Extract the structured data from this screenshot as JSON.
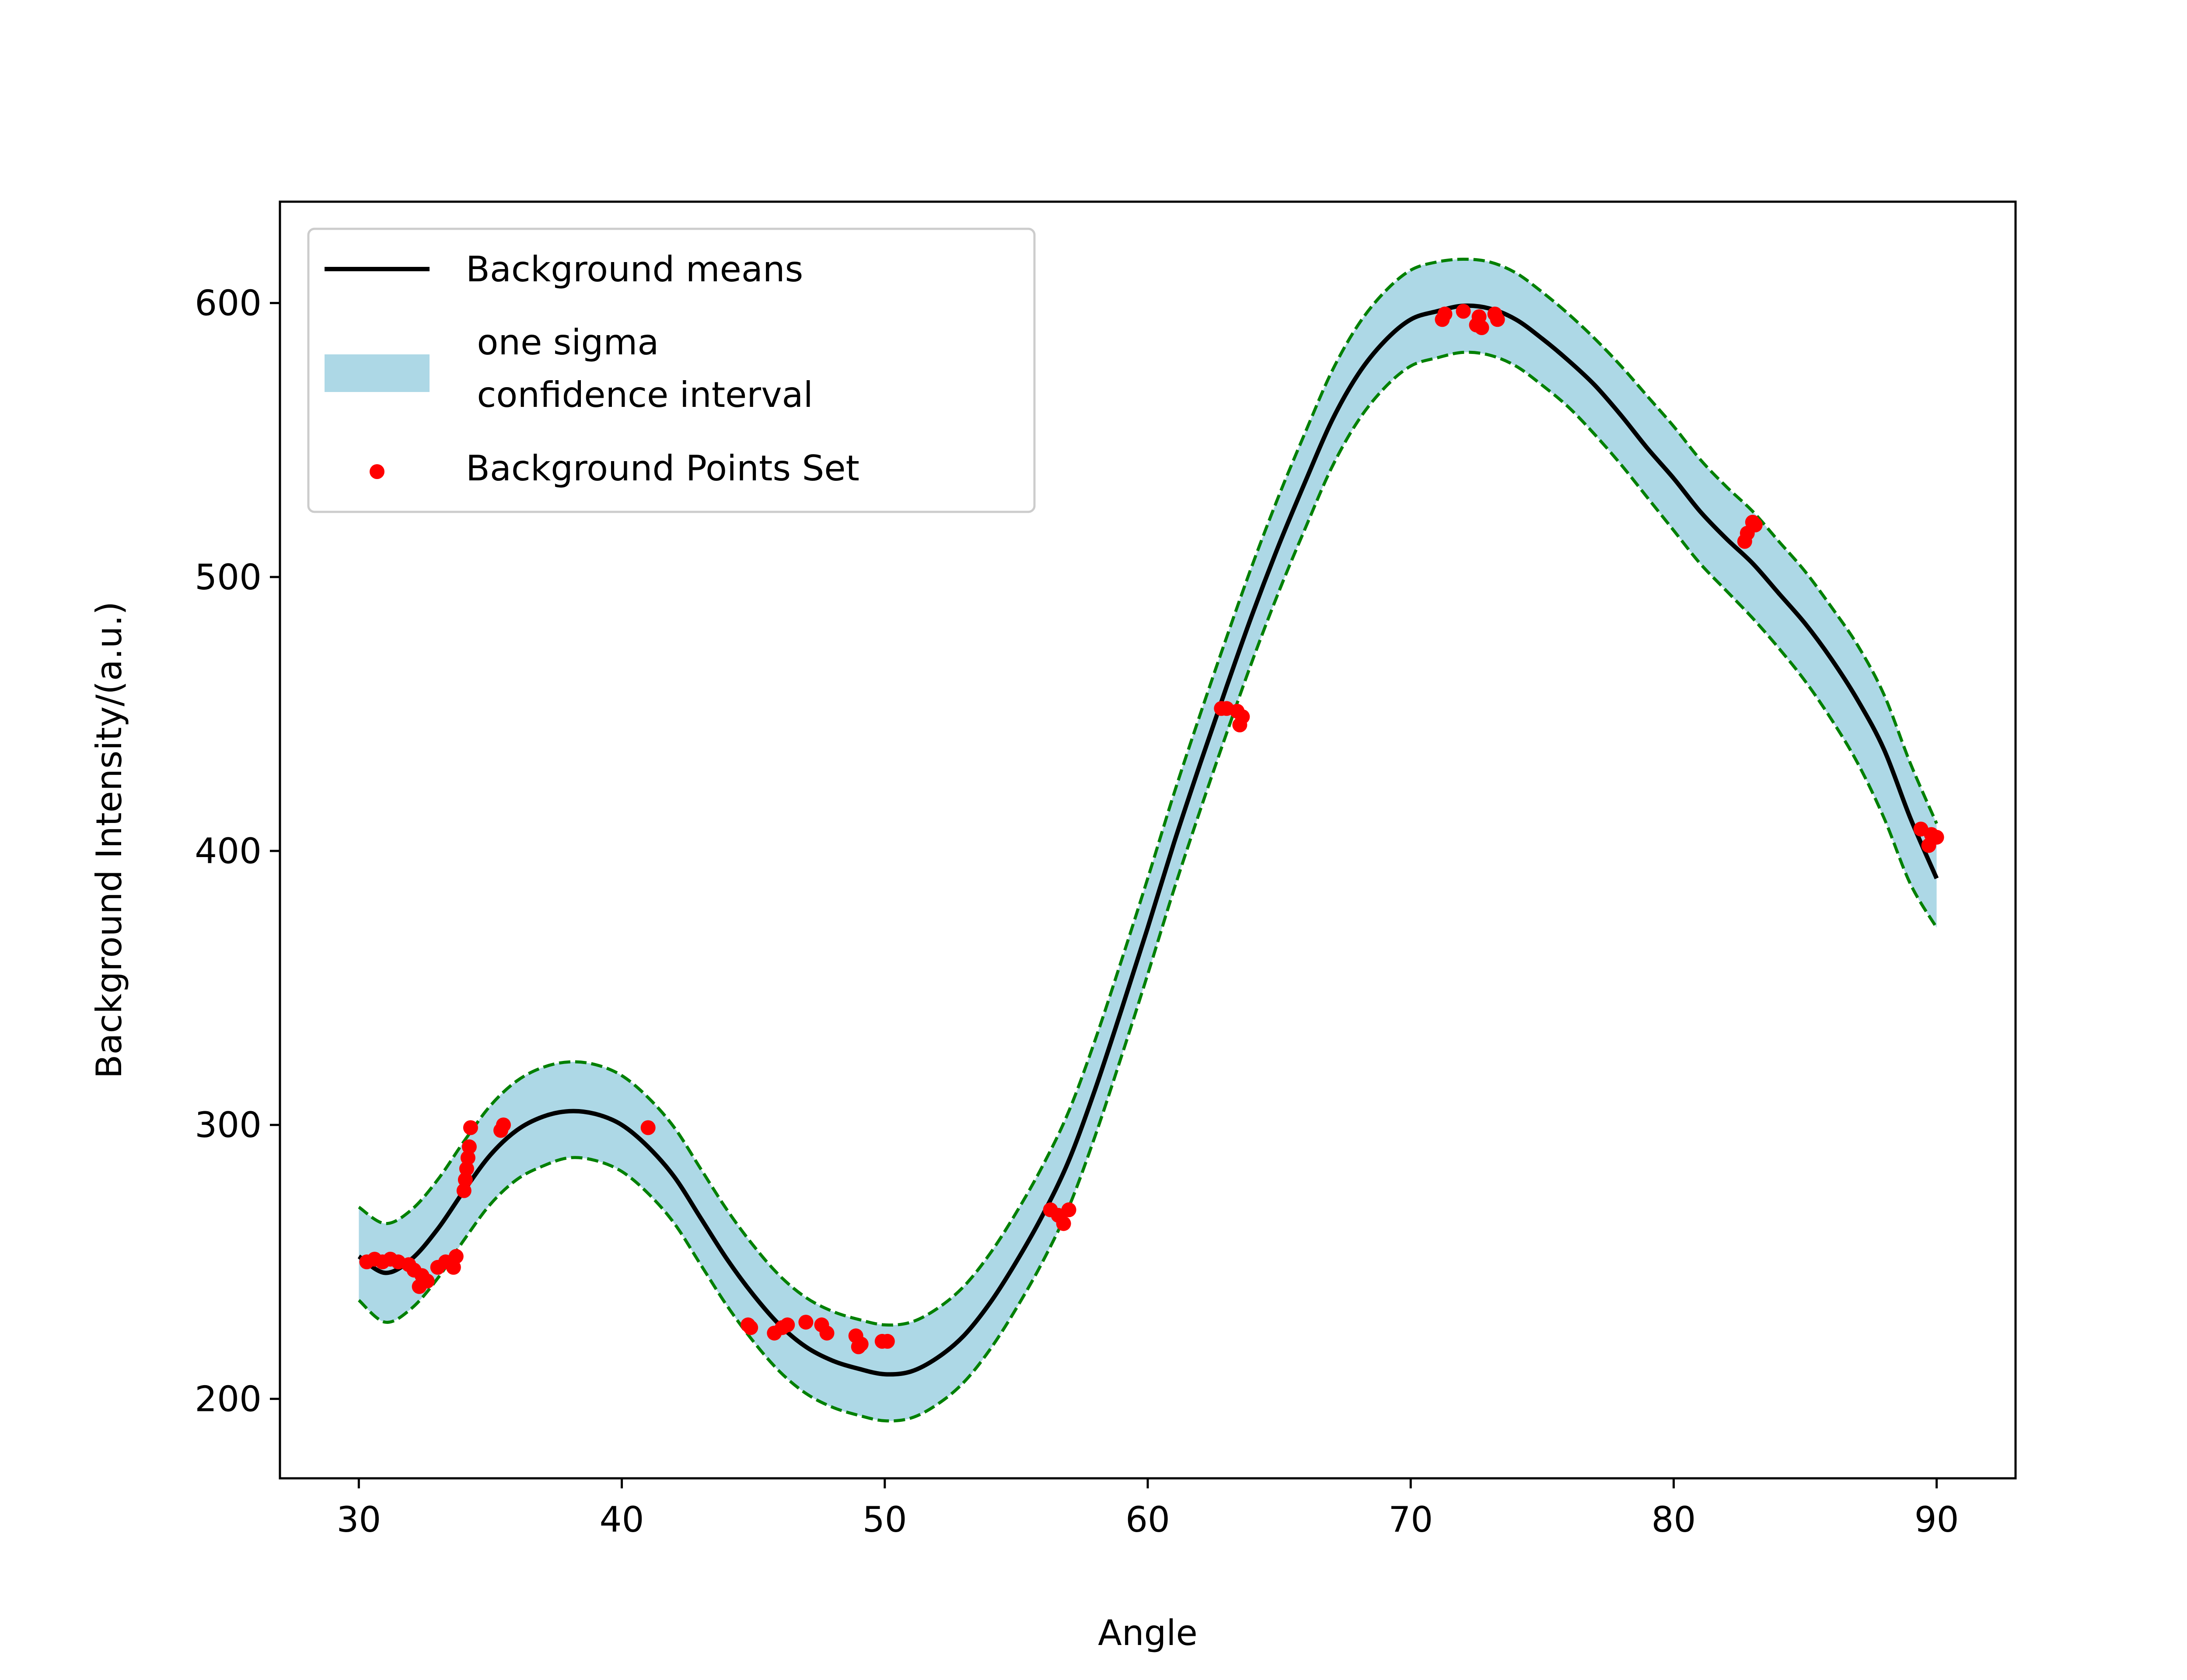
{
  "chart_data": {
    "type": "line",
    "xlabel": "Angle",
    "ylabel": "Background Intensity/(a.u.)",
    "xlim": [
      27,
      93
    ],
    "ylim": [
      171,
      637
    ],
    "xticks": [
      30,
      40,
      50,
      60,
      70,
      80,
      90
    ],
    "yticks": [
      200,
      300,
      400,
      500,
      600
    ],
    "grid": false,
    "legend_position": "upper-left",
    "colors": {
      "mean_line": "#000000",
      "band_fill": "#add8e6",
      "band_edge": "#008000",
      "points": "#ff0000"
    },
    "legend": [
      {
        "key": "mean",
        "label": "Background means",
        "marker": "line"
      },
      {
        "key": "band",
        "label_lines": [
          " one sigma",
          " confidence interval"
        ],
        "marker": "patch"
      },
      {
        "key": "points",
        "label": "Background Points Set",
        "marker": "dot"
      }
    ],
    "series": [
      {
        "name": "Background means",
        "kind": "line",
        "x": [
          30,
          31,
          32,
          33,
          34,
          35,
          36,
          37,
          38,
          39,
          40,
          41,
          42,
          43,
          44,
          45,
          46,
          47,
          48,
          49,
          50,
          51,
          52,
          53,
          54,
          55,
          56,
          57,
          58,
          59,
          60,
          61,
          62,
          63,
          64,
          65,
          66,
          67,
          68,
          69,
          70,
          71,
          72,
          73,
          74,
          75,
          76,
          77,
          78,
          79,
          80,
          81,
          82,
          83,
          84,
          85,
          86,
          87,
          88,
          89,
          90
        ],
        "y": [
          252,
          246,
          251,
          262,
          276,
          289,
          298,
          303,
          305,
          304,
          300,
          292,
          281,
          266,
          251,
          238,
          227,
          219,
          214,
          211,
          209,
          210,
          215,
          223,
          235,
          250,
          267,
          287,
          313,
          342,
          372,
          403,
          432,
          460,
          487,
          512,
          535,
          557,
          574,
          586,
          594,
          597,
          599,
          598,
          594,
          587,
          579,
          570,
          559,
          547,
          536,
          524,
          514,
          505,
          494,
          483,
          470,
          455,
          437,
          412,
          390
        ]
      },
      {
        "name": "one sigma confidence interval",
        "kind": "band",
        "x": [
          30,
          31,
          32,
          33,
          34,
          35,
          36,
          37,
          38,
          39,
          40,
          41,
          42,
          43,
          44,
          45,
          46,
          47,
          48,
          49,
          50,
          51,
          52,
          53,
          54,
          55,
          56,
          57,
          58,
          59,
          60,
          61,
          62,
          63,
          64,
          65,
          66,
          67,
          68,
          69,
          70,
          71,
          72,
          73,
          74,
          75,
          76,
          77,
          78,
          79,
          80,
          81,
          82,
          83,
          84,
          85,
          86,
          87,
          88,
          89,
          90
        ],
        "lower": [
          236,
          228,
          233,
          244,
          258,
          271,
          280,
          285,
          288,
          287,
          283,
          275,
          264,
          249,
          234,
          221,
          210,
          202,
          197,
          194,
          192,
          193,
          198,
          206,
          218,
          233,
          250,
          270,
          296,
          325,
          355,
          386,
          415,
          443,
          470,
          495,
          518,
          540,
          557,
          569,
          577,
          580,
          582,
          581,
          577,
          570,
          562,
          552,
          541,
          529,
          517,
          505,
          495,
          485,
          474,
          462,
          448,
          432,
          412,
          388,
          372
        ],
        "upper": [
          270,
          264,
          269,
          280,
          294,
          307,
          316,
          321,
          323,
          322,
          318,
          310,
          299,
          284,
          269,
          256,
          245,
          237,
          232,
          229,
          227,
          228,
          233,
          241,
          253,
          268,
          285,
          305,
          331,
          360,
          390,
          421,
          450,
          478,
          505,
          530,
          553,
          575,
          592,
          604,
          612,
          615,
          616,
          615,
          611,
          604,
          596,
          587,
          577,
          566,
          555,
          543,
          533,
          524,
          513,
          502,
          489,
          475,
          457,
          432,
          410
        ]
      },
      {
        "name": "Background Points Set",
        "kind": "scatter",
        "points": [
          [
            30.3,
            250
          ],
          [
            30.6,
            251
          ],
          [
            30.9,
            250
          ],
          [
            31.2,
            251
          ],
          [
            31.5,
            250
          ],
          [
            31.9,
            249
          ],
          [
            32.1,
            247
          ],
          [
            32.3,
            241
          ],
          [
            32.4,
            245
          ],
          [
            32.6,
            243
          ],
          [
            33.0,
            248
          ],
          [
            33.3,
            250
          ],
          [
            33.6,
            248
          ],
          [
            33.7,
            252
          ],
          [
            34.0,
            276
          ],
          [
            34.05,
            280
          ],
          [
            34.1,
            284
          ],
          [
            34.15,
            288
          ],
          [
            34.2,
            292
          ],
          [
            34.25,
            299
          ],
          [
            35.4,
            298
          ],
          [
            35.5,
            300
          ],
          [
            41.0,
            299
          ],
          [
            44.8,
            227
          ],
          [
            44.9,
            226
          ],
          [
            45.8,
            224
          ],
          [
            46.1,
            226
          ],
          [
            46.3,
            227
          ],
          [
            47.0,
            228
          ],
          [
            47.6,
            227
          ],
          [
            47.8,
            224
          ],
          [
            48.9,
            223
          ],
          [
            49.0,
            219
          ],
          [
            49.1,
            220
          ],
          [
            49.9,
            221
          ],
          [
            50.1,
            221
          ],
          [
            56.3,
            269
          ],
          [
            56.6,
            267
          ],
          [
            56.8,
            264
          ],
          [
            57.0,
            269
          ],
          [
            62.8,
            452
          ],
          [
            63.0,
            452
          ],
          [
            63.4,
            451
          ],
          [
            63.5,
            446
          ],
          [
            63.6,
            449
          ],
          [
            71.2,
            594
          ],
          [
            71.3,
            596
          ],
          [
            72.0,
            597
          ],
          [
            72.5,
            592
          ],
          [
            72.6,
            595
          ],
          [
            72.7,
            591
          ],
          [
            73.2,
            596
          ],
          [
            73.3,
            594
          ],
          [
            82.7,
            513
          ],
          [
            82.8,
            516
          ],
          [
            83.0,
            520
          ],
          [
            83.1,
            519
          ],
          [
            89.4,
            408
          ],
          [
            89.7,
            402
          ],
          [
            89.8,
            406
          ],
          [
            90.0,
            405
          ]
        ]
      }
    ]
  }
}
